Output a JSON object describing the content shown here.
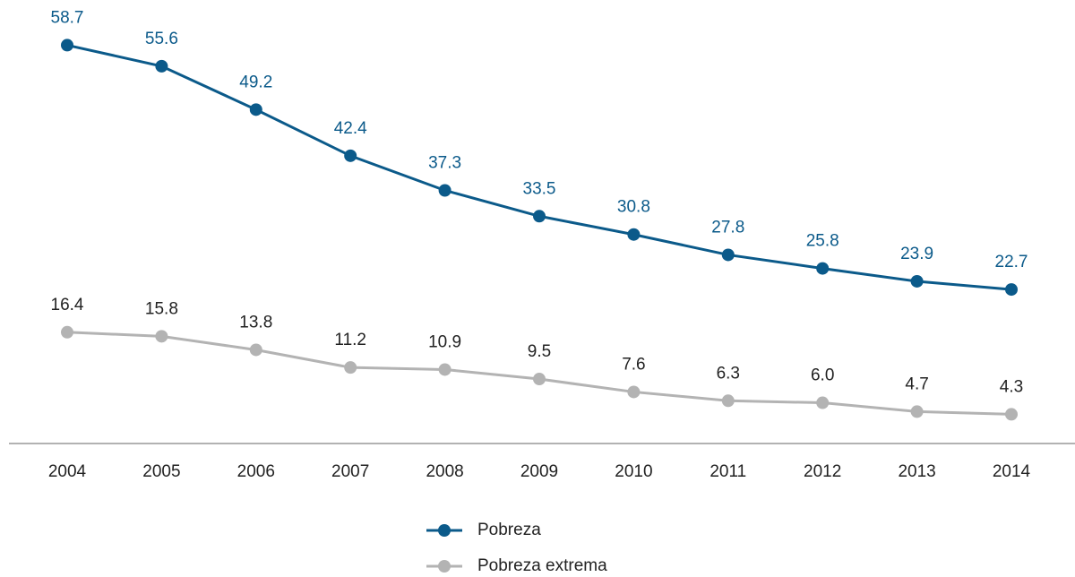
{
  "chart_data": {
    "type": "line",
    "categories": [
      "2004",
      "2005",
      "2006",
      "2007",
      "2008",
      "2009",
      "2010",
      "2011",
      "2012",
      "2013",
      "2014"
    ],
    "series": [
      {
        "name": "Pobreza",
        "color": "#0b5a8a",
        "values": [
          58.7,
          55.6,
          49.2,
          42.4,
          37.3,
          33.5,
          30.8,
          27.8,
          25.8,
          23.9,
          22.7
        ],
        "value_labels": [
          "58.7",
          "55.6",
          "49.2",
          "42.4",
          "37.3",
          "33.5",
          "30.8",
          "27.8",
          "25.8",
          "23.9",
          "22.7"
        ]
      },
      {
        "name": "Pobreza extrema",
        "color": "#b3b3b3",
        "values": [
          16.4,
          15.8,
          13.8,
          11.2,
          10.9,
          9.5,
          7.6,
          6.3,
          6.0,
          4.7,
          4.3
        ],
        "value_labels": [
          "16.4",
          "15.8",
          "13.8",
          "11.2",
          "10.9",
          "9.5",
          "7.6",
          "6.3",
          "6.0",
          "4.7",
          "4.3"
        ]
      }
    ],
    "ylim": [
      0,
      65
    ],
    "legend": "bottom"
  }
}
